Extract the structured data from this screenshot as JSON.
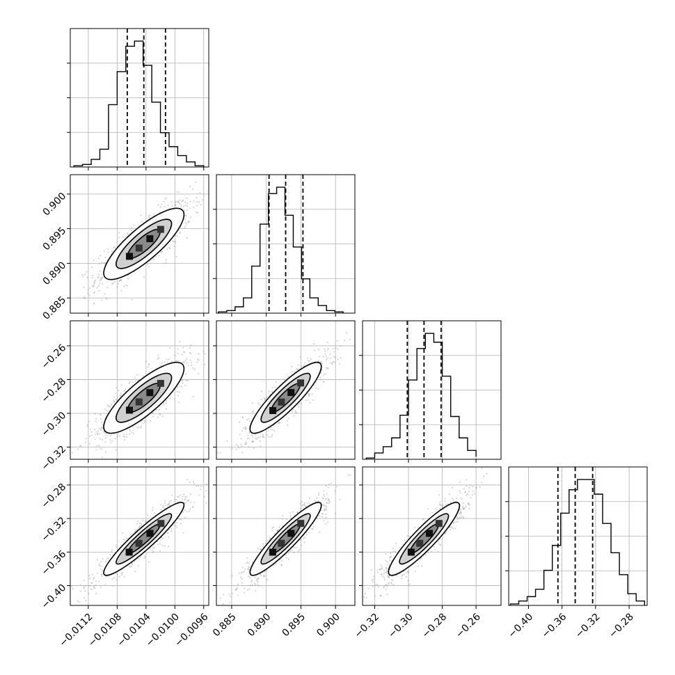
{
  "chart_data": {
    "type": "corner",
    "grid": true,
    "parameters": [
      {
        "name": "",
        "range": [
          -0.01145,
          -0.00953
        ],
        "ticks": [
          -0.0112,
          -0.0108,
          -0.0104,
          -0.01,
          -0.0096
        ],
        "tick_labels": [
          "−0.0112",
          "−0.0108",
          "−0.0104",
          "−0.0100",
          "−0.0096"
        ],
        "quantiles": [
          -0.01066,
          -0.01043,
          -0.01013
        ],
        "histogram": {
          "bin_edges": [
            -0.0114,
            -0.01128,
            -0.01116,
            -0.01104,
            -0.01092,
            -0.0108,
            -0.01068,
            -0.01056,
            -0.01044,
            -0.01032,
            -0.0102,
            -0.01008,
            -0.00996,
            -0.00984,
            -0.00972,
            -0.0096
          ],
          "counts": [
            1,
            2,
            6,
            14,
            49,
            75,
            95,
            99,
            80,
            51,
            27,
            16,
            9,
            4,
            1
          ]
        }
      },
      {
        "name": "",
        "range": [
          0.8828,
          0.9028
        ],
        "ticks": [
          0.885,
          0.89,
          0.895,
          0.9
        ],
        "tick_labels": [
          "0.885",
          "0.890",
          "0.895",
          "0.900"
        ],
        "quantiles": [
          0.8904,
          0.8928,
          0.8953
        ],
        "histogram": {
          "bin_edges": [
            0.8831,
            0.8843,
            0.8855,
            0.8867,
            0.8879,
            0.8891,
            0.8903,
            0.8915,
            0.8927,
            0.8939,
            0.8951,
            0.8963,
            0.8975,
            0.8987,
            0.8999,
            0.9011
          ],
          "counts": [
            1,
            2,
            5,
            12,
            37,
            70,
            94,
            99,
            77,
            52,
            27,
            12,
            6,
            2,
            1
          ]
        }
      },
      {
        "name": "",
        "range": [
          -0.3272,
          -0.2452
        ],
        "ticks": [
          -0.32,
          -0.3,
          -0.28,
          -0.26
        ],
        "tick_labels": [
          "−0.32",
          "−0.30",
          "−0.28",
          "−0.26"
        ],
        "quantiles": [
          -0.3007,
          -0.2908,
          -0.2807
        ],
        "histogram": {
          "bin_edges": [
            -0.325,
            -0.32,
            -0.315,
            -0.31,
            -0.305,
            -0.3,
            -0.295,
            -0.29,
            -0.285,
            -0.28,
            -0.275,
            -0.27,
            -0.265,
            -0.26
          ],
          "counts": [
            1,
            5,
            10,
            17,
            35,
            63,
            88,
            100,
            93,
            66,
            34,
            17,
            7,
            2
          ]
        }
      },
      {
        "name": "",
        "range": [
          -0.4236,
          -0.2585
        ],
        "ticks": [
          -0.4,
          -0.36,
          -0.32,
          -0.28
        ],
        "tick_labels": [
          "−0.40",
          "−0.36",
          "−0.32",
          "−0.28"
        ],
        "quantiles": [
          -0.3649,
          -0.3443,
          -0.3235
        ],
        "histogram": {
          "bin_edges": [
            -0.4216,
            -0.4116,
            -0.4016,
            -0.3916,
            -0.3816,
            -0.3716,
            -0.3616,
            -0.3516,
            -0.3416,
            -0.3316,
            -0.3216,
            -0.3116,
            -0.3016,
            -0.2916,
            -0.2816,
            -0.2716,
            -0.2616
          ],
          "counts": [
            1,
            3,
            6,
            11,
            24,
            41,
            63,
            79,
            86,
            86,
            76,
            56,
            36,
            21,
            8,
            3
          ]
        }
      }
    ],
    "correlations": {
      "1-0": 0.82,
      "2-0": 0.82,
      "2-1": 0.88,
      "3-0": 0.93,
      "3-1": 0.92,
      "3-2": 0.91
    }
  }
}
